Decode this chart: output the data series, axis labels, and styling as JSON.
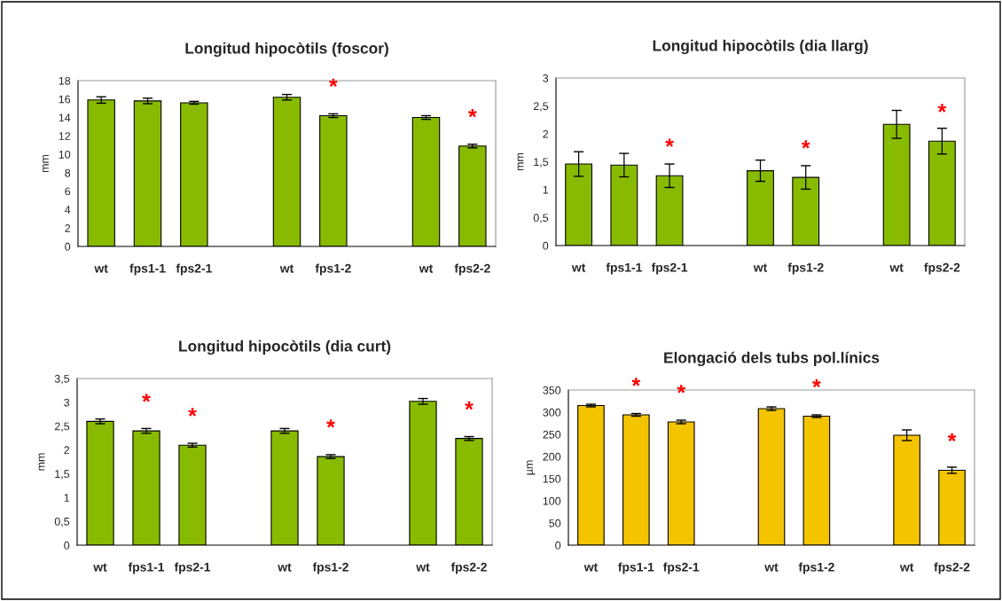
{
  "chart_data": [
    {
      "type": "bar",
      "title": "Longitud hipocòtils (foscor)",
      "ylabel": "mm",
      "categories": [
        "wt",
        "fps1-1",
        "fps2-1",
        null,
        "wt",
        "fps1-2",
        null,
        "wt",
        "fps2-2"
      ],
      "series": [
        {
          "color": "#88bb00",
          "values": [
            15.9,
            15.8,
            15.6,
            null,
            16.2,
            14.2,
            null,
            14.0,
            10.9
          ],
          "errors": [
            0.35,
            0.3,
            0.15,
            null,
            0.3,
            0.2,
            null,
            0.2,
            0.2
          ]
        }
      ],
      "ylim": [
        0,
        18
      ],
      "yticks": [
        0,
        2,
        4,
        6,
        8,
        10,
        12,
        14,
        16,
        18
      ],
      "annotations": [
        {
          "text": "*",
          "x": "fps1-2",
          "y": 14.2
        },
        {
          "text": "*",
          "x": "fps2-2",
          "y": 10.9
        }
      ]
    },
    {
      "type": "bar",
      "title": "Longitud hipocòtils (dia llarg)",
      "ylabel": "mm",
      "categories": [
        "wt",
        "fps1-1",
        "fps2-1",
        null,
        "wt",
        "fps1-2",
        null,
        "wt",
        "fps2-2"
      ],
      "series": [
        {
          "color": "#88bb00",
          "values": [
            1.46,
            1.44,
            1.25,
            null,
            1.34,
            1.22,
            null,
            2.17,
            1.87
          ],
          "errors": [
            0.22,
            0.21,
            0.21,
            null,
            0.19,
            0.21,
            null,
            0.25,
            0.23
          ]
        }
      ],
      "ylim": [
        0,
        3
      ],
      "yticks": [
        0,
        {
          "value": 0.5,
          "label": "0,5"
        },
        1,
        {
          "value": 1.5,
          "label": "1,5"
        },
        2,
        {
          "value": 2.5,
          "label": "2,5"
        },
        3
      ],
      "annotations": [
        {
          "text": "*",
          "x": "fps2-1",
          "y": 1.25
        },
        {
          "text": "*",
          "x": "fps1-2",
          "y": 1.22
        },
        {
          "text": "*",
          "x": "fps2-2",
          "y": 1.87
        }
      ]
    },
    {
      "type": "bar",
      "title": "Longitud hipocòtils (dia curt)",
      "ylabel": "mm",
      "categories": [
        "wt",
        "fps1-1",
        "fps2-1",
        null,
        "wt",
        "fps1-2",
        null,
        "wt",
        "fps2-2"
      ],
      "series": [
        {
          "color": "#88bb00",
          "values": [
            2.6,
            2.4,
            2.1,
            null,
            2.4,
            1.86,
            null,
            3.02,
            2.24
          ],
          "errors": [
            0.05,
            0.05,
            0.04,
            null,
            0.05,
            0.04,
            null,
            0.06,
            0.04
          ]
        }
      ],
      "ylim": [
        0,
        3.5
      ],
      "yticks": [
        0,
        {
          "value": 0.5,
          "label": "0,5"
        },
        1,
        {
          "value": 1.5,
          "label": "1,5"
        },
        2,
        {
          "value": 2.5,
          "label": "2,5"
        },
        3,
        {
          "value": 3.5,
          "label": "3,5"
        }
      ],
      "annotations": [
        {
          "text": "*",
          "x": "fps1-1",
          "y": 2.4
        },
        {
          "text": "*",
          "x": "fps2-1",
          "y": 2.1
        },
        {
          "text": "*",
          "x": "fps1-2",
          "y": 1.86
        },
        {
          "text": "*",
          "x": "fps2-2",
          "y": 2.24
        }
      ]
    },
    {
      "type": "bar",
      "title": "Elongació dels tubs pol.línics",
      "ylabel": "µm",
      "categories": [
        "wt",
        "fps1-1",
        "fps2-1",
        null,
        "wt",
        "fps1-2",
        null,
        "wt",
        "fps2-2"
      ],
      "series": [
        {
          "color": "#f5c400",
          "values": [
            315,
            294,
            278,
            null,
            308,
            291,
            null,
            248,
            169
          ],
          "errors": [
            3,
            3,
            4,
            null,
            4,
            3,
            null,
            12,
            7
          ]
        }
      ],
      "ylim": [
        0,
        350
      ],
      "yticks": [
        0,
        50,
        100,
        150,
        200,
        250,
        300,
        350
      ],
      "annotations": [
        {
          "text": "*",
          "x": "fps1-1",
          "y": 294
        },
        {
          "text": "*",
          "x": "fps2-1",
          "y": 278
        },
        {
          "text": "*",
          "x": "fps1-2",
          "y": 291
        },
        {
          "text": "*",
          "x": "fps2-2",
          "y": 169
        }
      ]
    }
  ]
}
